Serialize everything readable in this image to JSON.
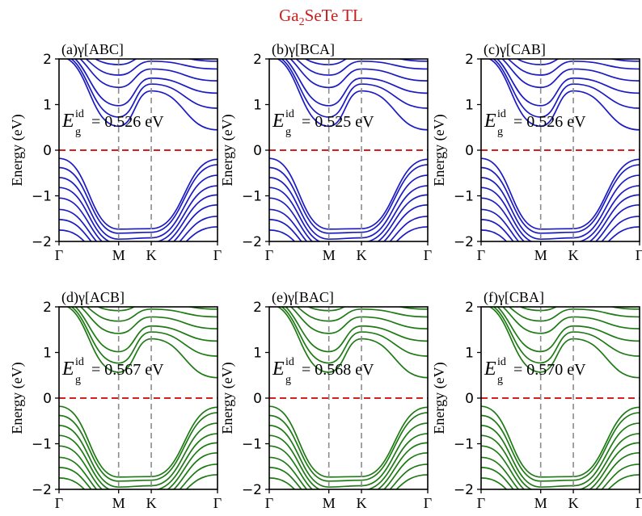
{
  "figure": {
    "title_main": "Ga",
    "title_sub": "2",
    "title_rest": "SeTe TL",
    "title_color": "#c8201e"
  },
  "colors": {
    "blue": "#1b1bc4",
    "green": "#1e7a14",
    "fermi": "#d61f1f",
    "guide": "#8c8c8c"
  },
  "chart_data": [
    {
      "type": "line",
      "panel": "a",
      "title": "(a)γ[ABC]",
      "ylabel": "Energy (eV)",
      "ylim": [
        -2,
        2
      ],
      "yticks": [
        "2",
        "1",
        "0",
        "−1",
        "−2"
      ],
      "xticks": [
        "Γ",
        "M",
        "K",
        "Γ"
      ],
      "series_color": "blue",
      "gap_symbol": "E",
      "gap_sup": "id",
      "gap_sub": "g",
      "gap_text": "= 0.526 eV",
      "gap_value_eV": 0.526,
      "fermi_level_eV": 0,
      "legend": "none",
      "grid": false
    },
    {
      "type": "line",
      "panel": "b",
      "title": "(b)γ[BCA]",
      "ylabel": "Energy (eV)",
      "ylim": [
        -2,
        2
      ],
      "yticks": [
        "2",
        "1",
        "0",
        "−1",
        "−2"
      ],
      "xticks": [
        "Γ",
        "M",
        "K",
        "Γ"
      ],
      "series_color": "blue",
      "gap_symbol": "E",
      "gap_sup": "id",
      "gap_sub": "g",
      "gap_text": "= 0.525 eV",
      "gap_value_eV": 0.525,
      "fermi_level_eV": 0,
      "legend": "none",
      "grid": false
    },
    {
      "type": "line",
      "panel": "c",
      "title": "(c)γ[CAB]",
      "ylabel": "Energy (eV)",
      "ylim": [
        -2,
        2
      ],
      "yticks": [
        "2",
        "1",
        "0",
        "−1",
        "−2"
      ],
      "xticks": [
        "Γ",
        "M",
        "K",
        "Γ"
      ],
      "series_color": "blue",
      "gap_symbol": "E",
      "gap_sup": "id",
      "gap_sub": "g",
      "gap_text": "= 0.526 eV",
      "gap_value_eV": 0.526,
      "fermi_level_eV": 0,
      "legend": "none",
      "grid": false
    },
    {
      "type": "line",
      "panel": "d",
      "title": "(d)γ[ACB]",
      "ylabel": "Energy (eV)",
      "ylim": [
        -2,
        2
      ],
      "yticks": [
        "2",
        "1",
        "0",
        "−1",
        "−2"
      ],
      "xticks": [
        "Γ",
        "M",
        "K",
        "Γ"
      ],
      "series_color": "green",
      "gap_symbol": "E",
      "gap_sup": "id",
      "gap_sub": "g",
      "gap_text": "= 0.567 eV",
      "gap_value_eV": 0.567,
      "fermi_level_eV": 0,
      "legend": "none",
      "grid": false
    },
    {
      "type": "line",
      "panel": "e",
      "title": "(e)γ[BAC]",
      "ylabel": "Energy (eV)",
      "ylim": [
        -2,
        2
      ],
      "yticks": [
        "2",
        "1",
        "0",
        "−1",
        "−2"
      ],
      "xticks": [
        "Γ",
        "M",
        "K",
        "Γ"
      ],
      "series_color": "green",
      "gap_symbol": "E",
      "gap_sup": "id",
      "gap_sub": "g",
      "gap_text": "= 0.568 eV",
      "gap_value_eV": 0.568,
      "fermi_level_eV": 0,
      "legend": "none",
      "grid": false
    },
    {
      "type": "line",
      "panel": "f",
      "title": "(f)γ[CBA]",
      "ylabel": "Energy (eV)",
      "ylim": [
        -2,
        2
      ],
      "yticks": [
        "2",
        "1",
        "0",
        "−1",
        "−2"
      ],
      "xticks": [
        "Γ",
        "M",
        "K",
        "Γ"
      ],
      "series_color": "green",
      "gap_symbol": "E",
      "gap_sup": "id",
      "gap_sub": "g",
      "gap_text": "= 0.570 eV",
      "gap_value_eV": 0.57,
      "fermi_level_eV": 0,
      "legend": "none",
      "grid": false
    }
  ]
}
